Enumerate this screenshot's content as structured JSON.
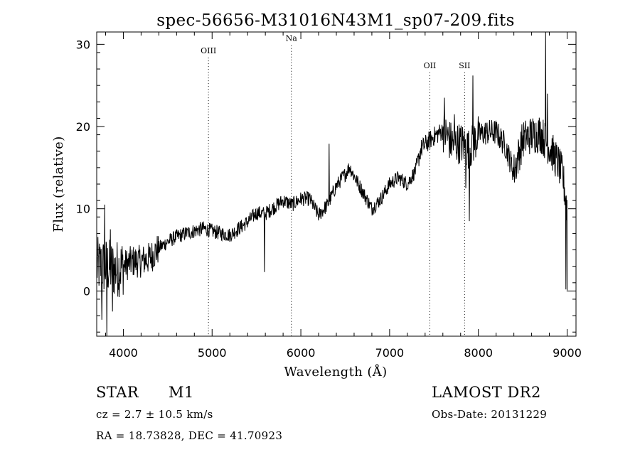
{
  "chart_data": {
    "type": "line",
    "title": "spec-56656-M31016N43M1_sp07-209.fits",
    "xlabel": "Wavelength (Å)",
    "ylabel": "Flux (relative)",
    "xlim": [
      3700,
      9100
    ],
    "ylim": [
      -5.5,
      31.5
    ],
    "xticks": [
      "4000",
      "5000",
      "6000",
      "7000",
      "8000",
      "9000"
    ],
    "xtick_values": [
      4000,
      5000,
      6000,
      7000,
      8000,
      9000
    ],
    "yticks": [
      "0",
      "10",
      "20",
      "30"
    ],
    "ytick_values": [
      0,
      10,
      20,
      30
    ],
    "line_markers": [
      {
        "label": "OIII",
        "x": 4959,
        "label_y": 28.9
      },
      {
        "label": "Na",
        "x": 5893,
        "label_y": 30.4
      },
      {
        "label": "OII",
        "x": 7453,
        "label_y": 27.1
      },
      {
        "label": "SII",
        "x": 7845,
        "label_y": 27.1
      }
    ],
    "spectrum_anchors": [
      [
        3700,
        3.0
      ],
      [
        3800,
        3.0
      ],
      [
        3900,
        2.6
      ],
      [
        4000,
        3.0
      ],
      [
        4100,
        3.6
      ],
      [
        4200,
        3.6
      ],
      [
        4300,
        4.0
      ],
      [
        4400,
        5.2
      ],
      [
        4500,
        6.0
      ],
      [
        4600,
        6.6
      ],
      [
        4700,
        7.0
      ],
      [
        4800,
        7.3
      ],
      [
        4900,
        7.6
      ],
      [
        5000,
        7.3
      ],
      [
        5100,
        7.0
      ],
      [
        5200,
        6.8
      ],
      [
        5300,
        7.6
      ],
      [
        5400,
        8.4
      ],
      [
        5500,
        9.5
      ],
      [
        5600,
        9.4
      ],
      [
        5700,
        10.2
      ],
      [
        5800,
        11.0
      ],
      [
        5900,
        10.5
      ],
      [
        6000,
        11.2
      ],
      [
        6100,
        11.2
      ],
      [
        6200,
        9.2
      ],
      [
        6300,
        10.5
      ],
      [
        6400,
        12.8
      ],
      [
        6500,
        14.2
      ],
      [
        6550,
        15.1
      ],
      [
        6600,
        14.0
      ],
      [
        6700,
        12.0
      ],
      [
        6800,
        10.0
      ],
      [
        6900,
        11.2
      ],
      [
        7000,
        13.0
      ],
      [
        7100,
        13.8
      ],
      [
        7200,
        13.0
      ],
      [
        7300,
        14.8
      ],
      [
        7350,
        17.2
      ],
      [
        7400,
        17.8
      ],
      [
        7500,
        18.8
      ],
      [
        7600,
        19.5
      ],
      [
        7700,
        18.0
      ],
      [
        7800,
        18.0
      ],
      [
        7900,
        17.2
      ],
      [
        8000,
        19.0
      ],
      [
        8100,
        19.3
      ],
      [
        8200,
        19.3
      ],
      [
        8300,
        17.8
      ],
      [
        8400,
        14.5
      ],
      [
        8500,
        18.4
      ],
      [
        8600,
        19.0
      ],
      [
        8700,
        19.2
      ],
      [
        8800,
        17.5
      ],
      [
        8900,
        15.5
      ],
      [
        8950,
        14.0
      ],
      [
        9000,
        10.0
      ]
    ],
    "spectrum_features": [
      [
        3760,
        -3.5
      ],
      [
        3790,
        10.5
      ],
      [
        3815,
        -5.5
      ],
      [
        3855,
        7.5
      ],
      [
        3880,
        -2.5
      ],
      [
        5590,
        2.3
      ],
      [
        6320,
        17.9
      ],
      [
        7620,
        23.5
      ],
      [
        7730,
        21.5
      ],
      [
        7860,
        12.5
      ],
      [
        7900,
        8.5
      ],
      [
        7940,
        26.2
      ],
      [
        8760,
        31.5
      ],
      [
        8780,
        24.0
      ],
      [
        8985,
        0.2
      ]
    ]
  },
  "info": {
    "object_class": "STAR",
    "subclass": "M1",
    "redshift": "cz = 2.7 ± 10.5 km/s",
    "coordinates": "RA =   18.73828, DEC =   41.70923",
    "survey": "LAMOST DR2",
    "obs_date": "Obs-Date: 20131229"
  }
}
